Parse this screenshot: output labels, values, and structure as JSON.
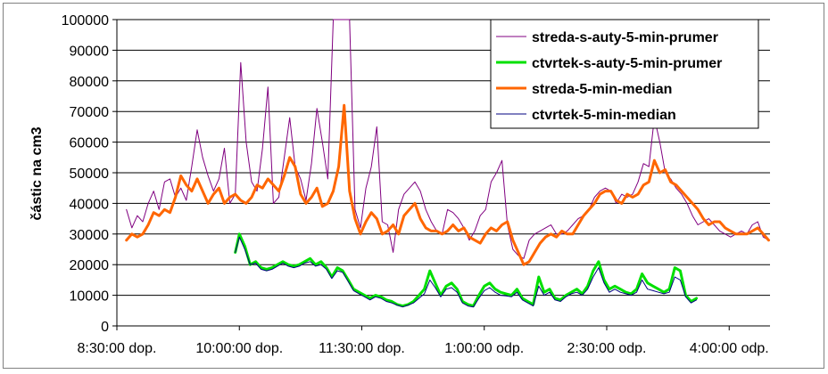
{
  "chart_data": {
    "type": "line",
    "title": "",
    "xlabel": "",
    "ylabel": "částic na cm3",
    "ylim": [
      0,
      100000
    ],
    "yticks": [
      0,
      10000,
      20000,
      30000,
      40000,
      50000,
      60000,
      70000,
      80000,
      90000,
      100000
    ],
    "xlim": [
      "08:30",
      "16:30"
    ],
    "xticks": [
      {
        "time": "08:30",
        "label": "8:30:00 dop."
      },
      {
        "time": "10:00",
        "label": "10:00:00 dop."
      },
      {
        "time": "11:30",
        "label": "11:30:00 dop."
      },
      {
        "time": "13:00",
        "label": "1:00:00 odp."
      },
      {
        "time": "14:30",
        "label": "2:30:00 odp."
      },
      {
        "time": "16:00",
        "label": "4:00:00 odp."
      }
    ],
    "grid": "horizontal",
    "legend_position": "top-right",
    "series": [
      {
        "name": "streda-s-auty-5-min-prumer",
        "color": "#800080",
        "width": 1,
        "x": [
          "08:37",
          "08:41",
          "08:45",
          "08:49",
          "08:53",
          "08:57",
          "09:01",
          "09:05",
          "09:09",
          "09:13",
          "09:17",
          "09:21",
          "09:25",
          "09:29",
          "09:33",
          "09:37",
          "09:41",
          "09:45",
          "09:49",
          "09:53",
          "09:57",
          "10:01",
          "10:05",
          "10:09",
          "10:13",
          "10:17",
          "10:21",
          "10:25",
          "10:29",
          "10:33",
          "10:37",
          "10:41",
          "10:45",
          "10:49",
          "10:53",
          "10:57",
          "11:01",
          "11:05",
          "11:09",
          "11:13",
          "11:17",
          "11:21",
          "11:25",
          "11:29",
          "11:33",
          "11:37",
          "11:41",
          "11:45",
          "11:49",
          "11:53",
          "11:57",
          "12:01",
          "12:05",
          "12:09",
          "12:13",
          "12:17",
          "12:21",
          "12:25",
          "12:29",
          "12:33",
          "12:37",
          "12:41",
          "12:45",
          "12:49",
          "12:53",
          "12:57",
          "13:01",
          "13:05",
          "13:09",
          "13:13",
          "13:17",
          "13:21",
          "13:25",
          "13:29",
          "13:33",
          "13:37",
          "13:41",
          "13:45",
          "13:49",
          "13:53",
          "13:57",
          "14:01",
          "14:05",
          "14:09",
          "14:13",
          "14:17",
          "14:21",
          "14:25",
          "14:29",
          "14:33",
          "14:37",
          "14:41",
          "14:45",
          "14:49",
          "14:53",
          "14:57",
          "15:01",
          "15:05",
          "15:09",
          "15:13",
          "15:17",
          "15:21",
          "15:25",
          "15:29",
          "15:33",
          "15:37",
          "15:41",
          "15:45",
          "15:49",
          "15:53",
          "15:57",
          "16:01",
          "16:05",
          "16:09",
          "16:13",
          "16:17",
          "16:21",
          "16:25",
          "16:29"
        ],
        "values": [
          38000,
          32000,
          36000,
          34000,
          40000,
          44000,
          38000,
          47000,
          48000,
          42000,
          45000,
          41000,
          52000,
          64000,
          55000,
          49000,
          44000,
          48000,
          58000,
          40000,
          43000,
          86000,
          60000,
          47000,
          44000,
          58000,
          78000,
          40000,
          42000,
          55000,
          68000,
          52000,
          48000,
          41000,
          53000,
          71000,
          60000,
          48000,
          100000,
          100000,
          100000,
          100000,
          38000,
          32000,
          45000,
          52000,
          65000,
          34000,
          33000,
          24000,
          38000,
          43000,
          45000,
          47000,
          44000,
          38000,
          34000,
          31000,
          30000,
          38000,
          37000,
          35000,
          32000,
          28000,
          31000,
          36000,
          38000,
          47000,
          50000,
          54000,
          33000,
          25000,
          23000,
          22000,
          28000,
          30000,
          31000,
          32000,
          33000,
          30000,
          30000,
          31000,
          33000,
          35000,
          36000,
          38000,
          42000,
          44000,
          45000,
          44000,
          40000,
          43000,
          42000,
          43000,
          47000,
          53000,
          52000,
          68000,
          60000,
          50000,
          48000,
          45000,
          43000,
          40000,
          36000,
          33000,
          34000,
          35000,
          33000,
          31000,
          30000,
          29000,
          30000,
          31000,
          30000,
          33000,
          34000,
          29000,
          28000
        ]
      },
      {
        "name": "ctvrtek-s-auty-5-min-prumer",
        "color": "#00e000",
        "width": 3,
        "x": [
          "09:57",
          "10:00",
          "10:04",
          "10:08",
          "10:12",
          "10:16",
          "10:20",
          "10:24",
          "10:28",
          "10:32",
          "10:36",
          "10:40",
          "10:44",
          "10:48",
          "10:52",
          "10:56",
          "11:00",
          "11:04",
          "11:08",
          "11:12",
          "11:16",
          "11:20",
          "11:24",
          "11:28",
          "11:32",
          "11:36",
          "11:40",
          "11:44",
          "11:48",
          "11:52",
          "11:56",
          "12:00",
          "12:04",
          "12:08",
          "12:12",
          "12:16",
          "12:20",
          "12:24",
          "12:28",
          "12:32",
          "12:36",
          "12:40",
          "12:44",
          "12:48",
          "12:52",
          "12:56",
          "13:00",
          "13:04",
          "13:08",
          "13:12",
          "13:16",
          "13:20",
          "13:24",
          "13:28",
          "13:32",
          "13:36",
          "13:40",
          "13:44",
          "13:48",
          "13:52",
          "13:56",
          "14:00",
          "14:04",
          "14:08",
          "14:12",
          "14:16",
          "14:20",
          "14:24",
          "14:28",
          "14:32",
          "14:36",
          "14:40",
          "14:44",
          "14:48",
          "14:52",
          "14:56",
          "15:00",
          "15:04",
          "15:08",
          "15:12",
          "15:16",
          "15:20",
          "15:24",
          "15:28",
          "15:32",
          "15:36"
        ],
        "values": [
          24000,
          30000,
          26000,
          20000,
          21000,
          19000,
          18500,
          19000,
          20000,
          21000,
          20000,
          19500,
          20000,
          21000,
          22000,
          20000,
          21000,
          19000,
          16000,
          19000,
          18000,
          15000,
          12000,
          11000,
          10000,
          9000,
          10000,
          9500,
          8500,
          8000,
          7000,
          6500,
          7000,
          8000,
          10000,
          12000,
          18000,
          14000,
          10000,
          13000,
          14000,
          12000,
          8000,
          7000,
          6500,
          10000,
          13000,
          14000,
          12000,
          11000,
          10500,
          10000,
          12000,
          9000,
          8000,
          7000,
          16000,
          11000,
          12000,
          9000,
          8500,
          10000,
          11000,
          12000,
          10500,
          13000,
          18000,
          21000,
          15000,
          12000,
          13000,
          12000,
          11000,
          10500,
          12000,
          17000,
          14000,
          13000,
          12000,
          11000,
          12000,
          19000,
          18000,
          10000,
          8000,
          9000
        ]
      },
      {
        "name": "streda-5-min-median",
        "color": "#ff6600",
        "width": 3,
        "x": [
          "08:37",
          "08:41",
          "08:45",
          "08:49",
          "08:53",
          "08:57",
          "09:01",
          "09:05",
          "09:09",
          "09:13",
          "09:17",
          "09:21",
          "09:25",
          "09:29",
          "09:33",
          "09:37",
          "09:41",
          "09:45",
          "09:49",
          "09:53",
          "09:57",
          "10:01",
          "10:05",
          "10:09",
          "10:13",
          "10:17",
          "10:21",
          "10:25",
          "10:29",
          "10:33",
          "10:37",
          "10:41",
          "10:45",
          "10:49",
          "10:53",
          "10:57",
          "11:01",
          "11:05",
          "11:09",
          "11:13",
          "11:17",
          "11:21",
          "11:25",
          "11:29",
          "11:33",
          "11:37",
          "11:41",
          "11:45",
          "11:49",
          "11:53",
          "11:57",
          "12:01",
          "12:05",
          "12:09",
          "12:13",
          "12:17",
          "12:21",
          "12:25",
          "12:29",
          "12:33",
          "12:37",
          "12:41",
          "12:45",
          "12:49",
          "12:53",
          "12:57",
          "13:01",
          "13:05",
          "13:09",
          "13:13",
          "13:17",
          "13:21",
          "13:25",
          "13:29",
          "13:33",
          "13:37",
          "13:41",
          "13:45",
          "13:49",
          "13:53",
          "13:57",
          "14:01",
          "14:05",
          "14:09",
          "14:13",
          "14:17",
          "14:21",
          "14:25",
          "14:29",
          "14:33",
          "14:37",
          "14:41",
          "14:45",
          "14:49",
          "14:53",
          "14:57",
          "15:01",
          "15:05",
          "15:09",
          "15:13",
          "15:17",
          "15:21",
          "15:25",
          "15:29",
          "15:33",
          "15:37",
          "15:41",
          "15:45",
          "15:49",
          "15:53",
          "15:57",
          "16:01",
          "16:05",
          "16:09",
          "16:13",
          "16:17",
          "16:21",
          "16:25",
          "16:29"
        ],
        "values": [
          28000,
          30000,
          29000,
          30000,
          33000,
          37000,
          36000,
          38000,
          37000,
          42000,
          49000,
          46000,
          44000,
          48000,
          44000,
          40000,
          43000,
          45000,
          40000,
          42000,
          43000,
          41000,
          40000,
          42000,
          46000,
          45000,
          48000,
          46000,
          44000,
          49000,
          55000,
          52000,
          43000,
          40000,
          42000,
          45000,
          39000,
          40000,
          44000,
          52000,
          72000,
          44000,
          35000,
          30000,
          34000,
          37000,
          35000,
          30000,
          31000,
          33000,
          30000,
          36000,
          38000,
          40000,
          35000,
          32000,
          31000,
          31000,
          30000,
          31000,
          33000,
          31000,
          32000,
          29000,
          28000,
          27000,
          30000,
          32000,
          31000,
          33000,
          34000,
          28000,
          24000,
          20000,
          21000,
          24000,
          27000,
          29000,
          30000,
          29000,
          31000,
          30000,
          30000,
          33000,
          36000,
          38000,
          40000,
          43000,
          44000,
          44000,
          41000,
          40000,
          43000,
          42000,
          43000,
          46000,
          47000,
          54000,
          50000,
          51000,
          47000,
          46000,
          44000,
          42000,
          40000,
          38000,
          35000,
          33000,
          34000,
          34000,
          32000,
          31000,
          30000,
          30000,
          30000,
          31000,
          32000,
          30000,
          28000
        ]
      },
      {
        "name": "ctvrtek-5-min-median",
        "color": "#000080",
        "width": 1,
        "x": [
          "09:57",
          "10:00",
          "10:04",
          "10:08",
          "10:12",
          "10:16",
          "10:20",
          "10:24",
          "10:28",
          "10:32",
          "10:36",
          "10:40",
          "10:44",
          "10:48",
          "10:52",
          "10:56",
          "11:00",
          "11:04",
          "11:08",
          "11:12",
          "11:16",
          "11:20",
          "11:24",
          "11:28",
          "11:32",
          "11:36",
          "11:40",
          "11:44",
          "11:48",
          "11:52",
          "11:56",
          "12:00",
          "12:04",
          "12:08",
          "12:12",
          "12:16",
          "12:20",
          "12:24",
          "12:28",
          "12:32",
          "12:36",
          "12:40",
          "12:44",
          "12:48",
          "12:52",
          "12:56",
          "13:00",
          "13:04",
          "13:08",
          "13:12",
          "13:16",
          "13:20",
          "13:24",
          "13:28",
          "13:32",
          "13:36",
          "13:40",
          "13:44",
          "13:48",
          "13:52",
          "13:56",
          "14:00",
          "14:04",
          "14:08",
          "14:12",
          "14:16",
          "14:20",
          "14:24",
          "14:28",
          "14:32",
          "14:36",
          "14:40",
          "14:44",
          "14:48",
          "14:52",
          "14:56",
          "15:00",
          "15:04",
          "15:08",
          "15:12",
          "15:16",
          "15:20",
          "15:24",
          "15:28",
          "15:32",
          "15:36"
        ],
        "values": [
          24000,
          29000,
          25000,
          20000,
          20500,
          18500,
          18000,
          18500,
          19500,
          20500,
          19500,
          19000,
          19500,
          20500,
          21000,
          19500,
          20000,
          18500,
          15500,
          18000,
          17500,
          14500,
          11500,
          10500,
          9500,
          8500,
          9500,
          9000,
          8000,
          7500,
          6800,
          6200,
          6800,
          7500,
          9000,
          10500,
          15000,
          12500,
          9500,
          12000,
          12500,
          11000,
          7500,
          6500,
          6200,
          9000,
          11500,
          12500,
          11000,
          10000,
          9800,
          9500,
          11000,
          8500,
          7500,
          6500,
          13000,
          10000,
          11000,
          8500,
          8000,
          9500,
          10500,
          11000,
          10000,
          12000,
          16000,
          19000,
          14000,
          11000,
          12000,
          11000,
          10500,
          10000,
          11000,
          15000,
          12000,
          11500,
          11000,
          10500,
          11000,
          16000,
          15000,
          9500,
          7500,
          8500
        ]
      }
    ]
  }
}
